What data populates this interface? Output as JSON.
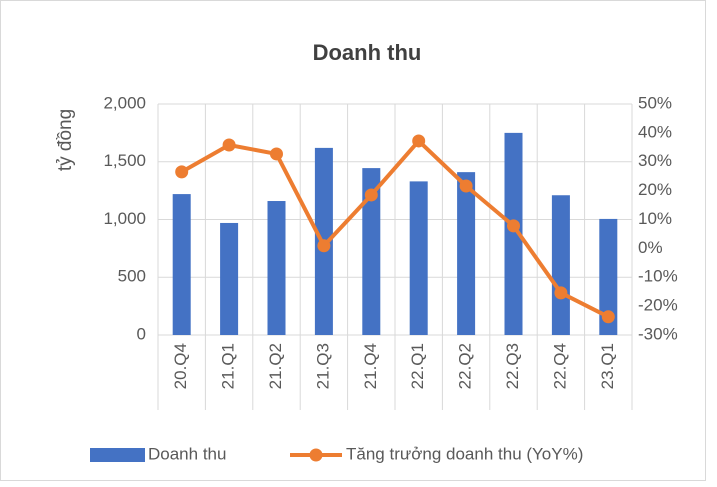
{
  "chart_data": {
    "type": "bar_line",
    "title": "Doanh thu",
    "ylabel": "tỷ đồng",
    "categories": [
      "20.Q4",
      "21.Q1",
      "21.Q2",
      "21.Q3",
      "21.Q4",
      "22.Q1",
      "22.Q2",
      "22.Q3",
      "22.Q4",
      "23.Q1"
    ],
    "series": [
      {
        "name": "Doanh thu",
        "type": "bar",
        "color": "#4472c4",
        "values": [
          1220,
          970,
          1160,
          1620,
          1445,
          1330,
          1410,
          1750,
          1210,
          1005
        ]
      },
      {
        "name": "Tăng trưởng doanh thu (YoY%)",
        "type": "line",
        "axis": "y2",
        "color": "#ed7d31",
        "values": [
          26.5,
          35.8,
          32.7,
          0.9,
          18.5,
          37.2,
          21.6,
          7.8,
          -15.4,
          -23.7
        ]
      }
    ],
    "ylim": [
      0,
      2000
    ],
    "yticks": [
      0,
      500,
      {
        "value": 1000,
        "label": "1,000"
      },
      {
        "value": 1500,
        "label": "1,500"
      },
      {
        "value": 2000,
        "label": "2,000"
      }
    ],
    "y2lim": [
      -30,
      50
    ],
    "y2ticks": [
      {
        "value": -30,
        "label": "-30%"
      },
      {
        "value": -20,
        "label": "-20%"
      },
      {
        "value": -10,
        "label": "-10%"
      },
      {
        "value": 0,
        "label": "0%"
      },
      {
        "value": 10,
        "label": "10%"
      },
      {
        "value": 20,
        "label": "20%"
      },
      {
        "value": 30,
        "label": "30%"
      },
      {
        "value": 40,
        "label": "40%"
      },
      {
        "value": 50,
        "label": "50%"
      }
    ],
    "grid": true,
    "legend": "bottom"
  }
}
